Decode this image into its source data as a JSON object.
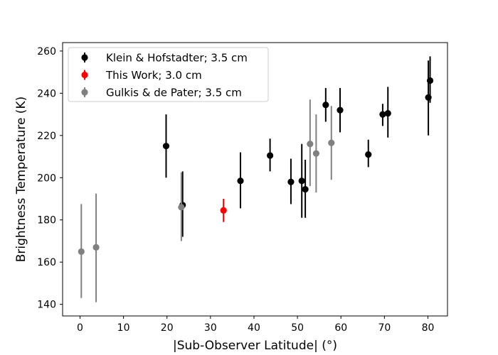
{
  "chart_data": {
    "type": "scatter",
    "xlabel": "|Sub-Observer Latitude| (°)",
    "ylabel": "Brightness Temperature (K)",
    "xlim": [
      -4,
      84.5
    ],
    "ylim": [
      134.5,
      264
    ],
    "xticks": [
      0,
      10,
      20,
      30,
      40,
      50,
      60,
      70,
      80
    ],
    "yticks": [
      140,
      160,
      180,
      200,
      220,
      240,
      260
    ],
    "grid": false,
    "legend_position": "top-left",
    "series": [
      {
        "name": "Klein & Hofstadter; 3.5 cm",
        "color": "#000000",
        "points": [
          {
            "x": 19.8,
            "y": 215,
            "lo": 200,
            "hi": 230
          },
          {
            "x": 23.6,
            "y": 187,
            "lo": 172,
            "hi": 203
          },
          {
            "x": 36.9,
            "y": 198.5,
            "lo": 185.5,
            "hi": 212
          },
          {
            "x": 43.7,
            "y": 210.5,
            "lo": 203,
            "hi": 218.5
          },
          {
            "x": 48.5,
            "y": 198,
            "lo": 187.5,
            "hi": 209
          },
          {
            "x": 51.0,
            "y": 198.5,
            "lo": 181,
            "hi": 216
          },
          {
            "x": 51.8,
            "y": 194.5,
            "lo": 181,
            "hi": 208.5
          },
          {
            "x": 56.5,
            "y": 234.5,
            "lo": 226.5,
            "hi": 242.5
          },
          {
            "x": 59.8,
            "y": 232,
            "lo": 221.5,
            "hi": 242.5
          },
          {
            "x": 66.3,
            "y": 211,
            "lo": 205,
            "hi": 218
          },
          {
            "x": 69.6,
            "y": 230,
            "lo": 224.5,
            "hi": 235
          },
          {
            "x": 70.8,
            "y": 230.5,
            "lo": 219,
            "hi": 243
          },
          {
            "x": 80.1,
            "y": 238,
            "lo": 220,
            "hi": 255.5
          },
          {
            "x": 80.5,
            "y": 246,
            "lo": 235.5,
            "hi": 257.5
          }
        ]
      },
      {
        "name": "This Work; 3.0 cm",
        "color": "#ff0000",
        "points": [
          {
            "x": 33.0,
            "y": 184.5,
            "lo": 179,
            "hi": 190
          }
        ]
      },
      {
        "name": "Gulkis & de Pater; 3.5 cm",
        "color": "#808080",
        "points": [
          {
            "x": 0.3,
            "y": 165,
            "lo": 143,
            "hi": 187.5
          },
          {
            "x": 3.7,
            "y": 167,
            "lo": 141,
            "hi": 192.5
          },
          {
            "x": 23.3,
            "y": 186,
            "lo": 170,
            "hi": 202.5
          },
          {
            "x": 52.9,
            "y": 216,
            "lo": 196,
            "hi": 237
          },
          {
            "x": 54.3,
            "y": 211.5,
            "lo": 193,
            "hi": 230
          },
          {
            "x": 57.8,
            "y": 216.5,
            "lo": 199,
            "hi": 234
          }
        ]
      }
    ]
  }
}
